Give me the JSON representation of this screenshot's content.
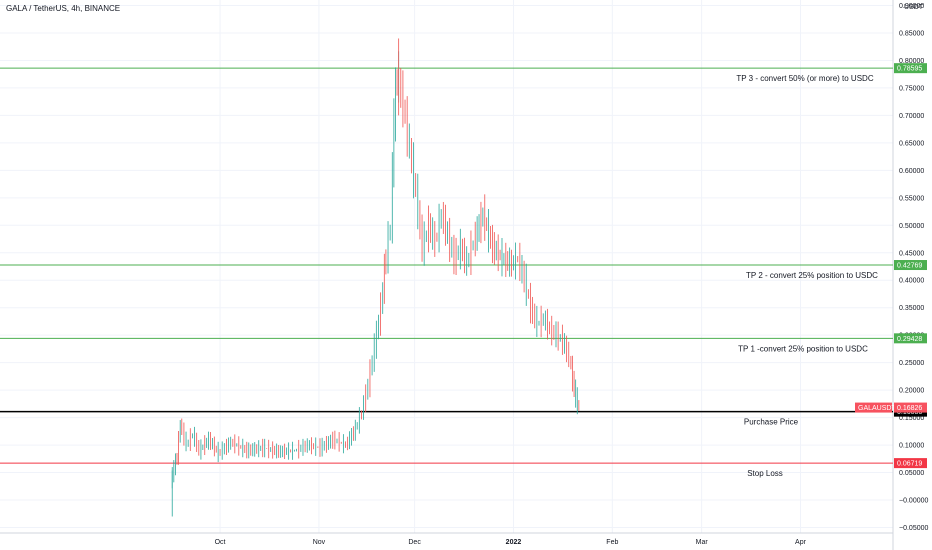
{
  "chart_data": {
    "type": "line",
    "title": "GALA / TetherUS, 4h, BINANCE",
    "unit": "USDT",
    "symbol": "GALAUSDT",
    "ylim": [
      -0.06,
      0.91
    ],
    "y_ticks": [
      -0.05,
      0.0,
      0.05,
      0.1,
      0.15,
      0.2,
      0.25,
      0.3,
      0.35,
      0.4,
      0.45,
      0.5,
      0.55,
      0.6,
      0.65,
      0.7,
      0.75,
      0.8,
      0.85,
      0.9
    ],
    "y_tick_labels": [
      "−0.05000",
      "−0.00000",
      "0.05000",
      "0.10000",
      "0.15000",
      "0.20000",
      "0.25000",
      "0.30000",
      "0.35000",
      "0.40000",
      "0.45000",
      "0.50000",
      "0.55000",
      "0.60000",
      "0.65000",
      "0.70000",
      "0.75000",
      "0.80000",
      "0.85000",
      "0.90000"
    ],
    "xlim": [
      "2021-07-24",
      "2022-04-30"
    ],
    "x_ticks": [
      {
        "date": "2021-10-01",
        "label": "Oct",
        "bold": false
      },
      {
        "date": "2021-11-01",
        "label": "Nov",
        "bold": false
      },
      {
        "date": "2021-12-01",
        "label": "Dec",
        "bold": false
      },
      {
        "date": "2022-01-01",
        "label": "2022",
        "bold": true
      },
      {
        "date": "2022-02-01",
        "label": "Feb",
        "bold": false
      },
      {
        "date": "2022-03-01",
        "label": "Mar",
        "bold": false
      },
      {
        "date": "2022-04-01",
        "label": "Apr",
        "bold": false
      }
    ],
    "price_series": {
      "name": "GALAUSDT",
      "points": [
        [
          "2021-09-16",
          0.03
        ],
        [
          "2021-09-17",
          0.06
        ],
        [
          "2021-09-18",
          0.08
        ],
        [
          "2021-09-19",
          0.14
        ],
        [
          "2021-09-21",
          0.1
        ],
        [
          "2021-09-23",
          0.12
        ],
        [
          "2021-09-25",
          0.09
        ],
        [
          "2021-09-28",
          0.11
        ],
        [
          "2021-10-01",
          0.085
        ],
        [
          "2021-10-05",
          0.105
        ],
        [
          "2021-10-10",
          0.09
        ],
        [
          "2021-10-15",
          0.095
        ],
        [
          "2021-10-20",
          0.088
        ],
        [
          "2021-10-25",
          0.09
        ],
        [
          "2021-10-29",
          0.1
        ],
        [
          "2021-11-02",
          0.095
        ],
        [
          "2021-11-06",
          0.11
        ],
        [
          "2021-11-10",
          0.1
        ],
        [
          "2021-11-13",
          0.13
        ],
        [
          "2021-11-15",
          0.16
        ],
        [
          "2021-11-17",
          0.21
        ],
        [
          "2021-11-19",
          0.28
        ],
        [
          "2021-11-21",
          0.35
        ],
        [
          "2021-11-22",
          0.42
        ],
        [
          "2021-11-24",
          0.5
        ],
        [
          "2021-11-25",
          0.7
        ],
        [
          "2021-11-26",
          0.78
        ],
        [
          "2021-11-28",
          0.72
        ],
        [
          "2021-11-30",
          0.64
        ],
        [
          "2021-12-02",
          0.56
        ],
        [
          "2021-12-04",
          0.46
        ],
        [
          "2021-12-06",
          0.5
        ],
        [
          "2021-12-08",
          0.47
        ],
        [
          "2021-12-10",
          0.52
        ],
        [
          "2021-12-12",
          0.48
        ],
        [
          "2021-12-14",
          0.44
        ],
        [
          "2021-12-16",
          0.46
        ],
        [
          "2021-12-18",
          0.43
        ],
        [
          "2021-12-20",
          0.47
        ],
        [
          "2021-12-23",
          0.52
        ],
        [
          "2021-12-26",
          0.46
        ],
        [
          "2021-12-29",
          0.44
        ],
        [
          "2022-01-01",
          0.43
        ],
        [
          "2022-01-03",
          0.44
        ],
        [
          "2022-01-05",
          0.4
        ],
        [
          "2022-01-07",
          0.35
        ],
        [
          "2022-01-09",
          0.32
        ],
        [
          "2022-01-11",
          0.33
        ],
        [
          "2022-01-13",
          0.31
        ],
        [
          "2022-01-15",
          0.3
        ],
        [
          "2022-01-17",
          0.29
        ],
        [
          "2022-01-19",
          0.26
        ],
        [
          "2022-01-20",
          0.22
        ],
        [
          "2022-01-21",
          0.185
        ],
        [
          "2022-01-22",
          0.168
        ]
      ],
      "high": [
        "2021-11-26",
        0.84
      ],
      "low": [
        "2021-09-16",
        -0.03
      ],
      "up_color": "#26a69a",
      "down_color": "#ef5350"
    },
    "levels": [
      {
        "value": 0.78595,
        "label": "0.78595",
        "color": "#4caf50",
        "annotation": "TP 3 - convert 50% (or more) to USDC"
      },
      {
        "value": 0.42769,
        "label": "0.42769",
        "color": "#4caf50",
        "annotation": "TP 2 - convert 25% position to USDC"
      },
      {
        "value": 0.29428,
        "label": "0.29428",
        "color": "#4caf50",
        "annotation": "TP 1 -convert 25% position to USDC"
      },
      {
        "value": 0.16086,
        "label": "0.16086",
        "color": "#000000",
        "annotation": "Purchase Price"
      },
      {
        "value": 0.06719,
        "label": "0.06719",
        "color": "#f23645",
        "annotation": "Stop Loss"
      }
    ],
    "last_price": {
      "value": 0.16826,
      "label": "0.16826",
      "color": "#f7525f"
    }
  }
}
